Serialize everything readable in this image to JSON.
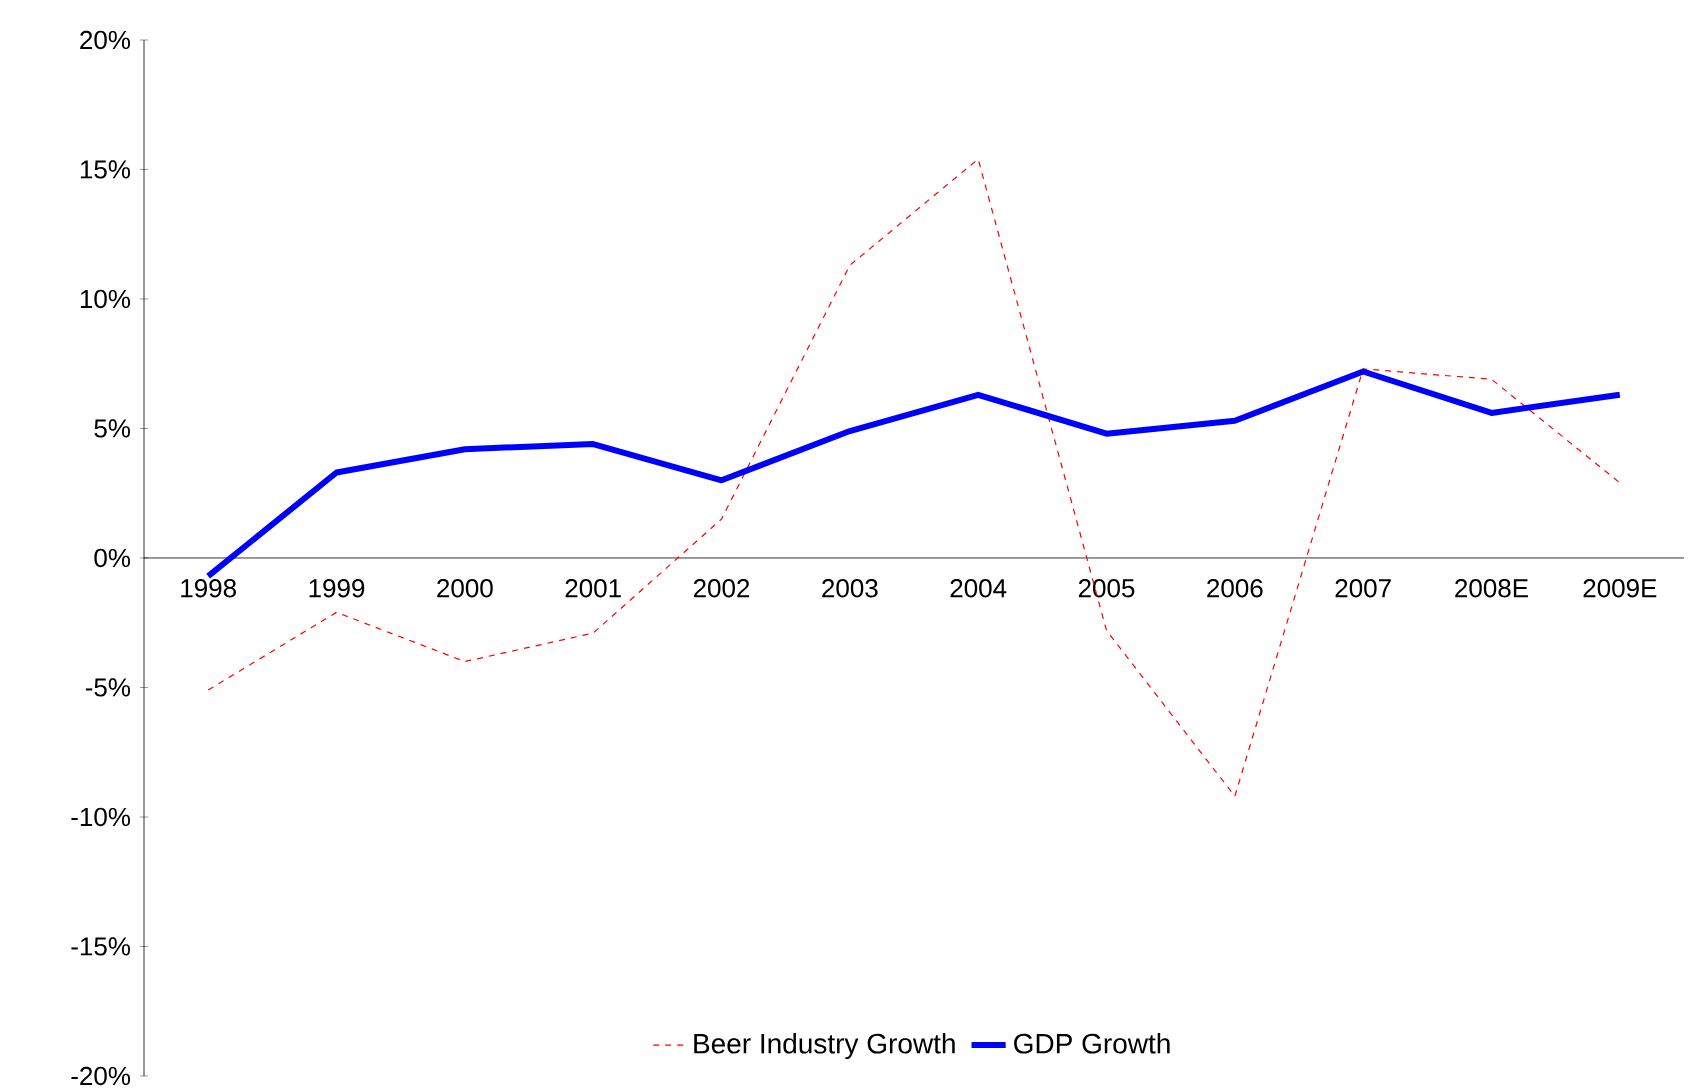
{
  "chart_data": {
    "type": "line",
    "categories": [
      "1998",
      "1999",
      "2000",
      "2001",
      "2002",
      "2003",
      "2004",
      "2005",
      "2006",
      "2007",
      "2008E",
      "2009E"
    ],
    "series": [
      {
        "name": "Beer Industry Growth",
        "color": "#ff0000",
        "line_style": "dashed",
        "values": [
          -5.1,
          -2.1,
          -4.0,
          -2.9,
          1.5,
          11.3,
          15.4,
          -2.8,
          -9.2,
          7.3,
          6.9,
          2.9
        ]
      },
      {
        "name": "GDP  Growth",
        "color": "#0000ff",
        "line_style": "solid",
        "values": [
          -0.7,
          3.3,
          4.2,
          4.4,
          3.0,
          4.9,
          6.3,
          4.8,
          5.3,
          7.2,
          5.6,
          6.3
        ]
      }
    ],
    "ylim": [
      -20,
      20
    ],
    "yticks": [
      {
        "value": -20,
        "label": "-20%"
      },
      {
        "value": -15,
        "label": "-15%"
      },
      {
        "value": -10,
        "label": "-10%"
      },
      {
        "value": -5,
        "label": "-5%"
      },
      {
        "value": 0,
        "label": "0%"
      },
      {
        "value": 5,
        "label": "5%"
      },
      {
        "value": 10,
        "label": "10%"
      },
      {
        "value": 15,
        "label": "15%"
      },
      {
        "value": 20,
        "label": "20%"
      }
    ],
    "legend": "bottom",
    "grid": false,
    "marker": "none"
  }
}
